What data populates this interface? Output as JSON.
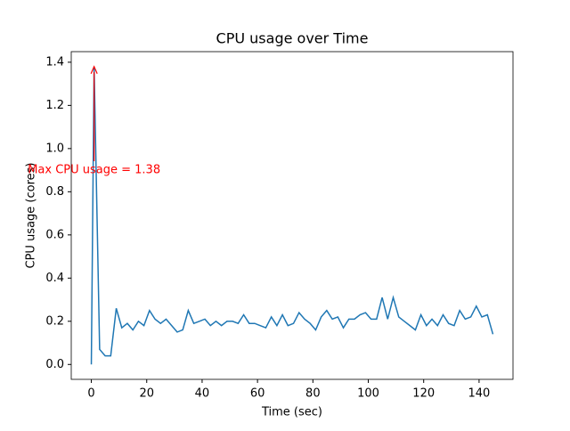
{
  "chart_data": {
    "type": "line",
    "title": "CPU usage over Time",
    "xlabel": "Time (sec)",
    "ylabel": "CPU usage (cores)",
    "annotation": "Max CPU usage = 1.38",
    "annotation_color": "#ff0000",
    "x": [
      0,
      1,
      3,
      5,
      7,
      9,
      11,
      13,
      15,
      17,
      19,
      21,
      23,
      25,
      27,
      29,
      31,
      33,
      35,
      37,
      39,
      41,
      43,
      45,
      47,
      49,
      51,
      53,
      55,
      57,
      59,
      61,
      63,
      65,
      67,
      69,
      71,
      73,
      75,
      77,
      79,
      81,
      83,
      85,
      87,
      89,
      91,
      93,
      95,
      97,
      99,
      101,
      103,
      105,
      107,
      109,
      111,
      113,
      115,
      117,
      119,
      121,
      123,
      125,
      127,
      129,
      131,
      133,
      135,
      137,
      139,
      141,
      143,
      145
    ],
    "series": [
      {
        "name": "CPU usage",
        "color": "#1f77b4",
        "values": [
          0,
          1.38,
          0.07,
          0.04,
          0.04,
          0.26,
          0.17,
          0.19,
          0.16,
          0.2,
          0.18,
          0.25,
          0.21,
          0.19,
          0.21,
          0.18,
          0.15,
          0.16,
          0.25,
          0.19,
          0.2,
          0.21,
          0.18,
          0.2,
          0.18,
          0.2,
          0.2,
          0.19,
          0.23,
          0.19,
          0.19,
          0.18,
          0.17,
          0.22,
          0.18,
          0.23,
          0.18,
          0.19,
          0.24,
          0.21,
          0.19,
          0.16,
          0.22,
          0.25,
          0.21,
          0.22,
          0.17,
          0.21,
          0.21,
          0.23,
          0.24,
          0.21,
          0.21,
          0.31,
          0.21,
          0.31,
          0.22,
          0.2,
          0.18,
          0.16,
          0.23,
          0.18,
          0.21,
          0.18,
          0.23,
          0.19,
          0.18,
          0.25,
          0.21,
          0.22,
          0.27,
          0.22,
          0.23,
          0.14
        ]
      }
    ],
    "xlim": [
      -7.25,
      152.25
    ],
    "ylim": [
      -0.069,
      1.449
    ],
    "xticks": [
      0,
      20,
      40,
      60,
      80,
      100,
      120,
      140
    ],
    "yticks": [
      {
        "value": 0,
        "label": "0.0"
      },
      0.2,
      0.4,
      0.6,
      0.8,
      {
        "value": 1,
        "label": "1.0"
      },
      1.2,
      1.4
    ]
  }
}
